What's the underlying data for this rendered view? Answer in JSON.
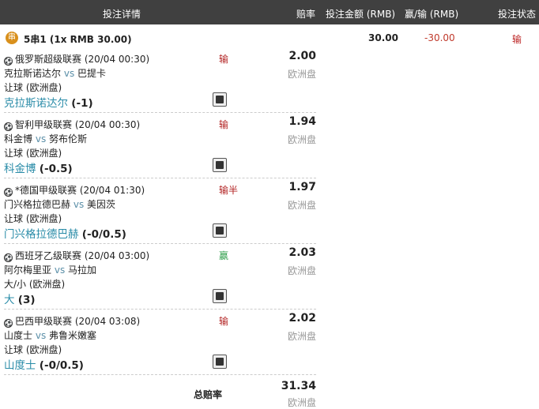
{
  "header": {
    "details": "投注详情",
    "odds": "赔率",
    "stake": "投注金额 (RMB)",
    "win_loss": "赢/输 (RMB)",
    "status": "投注状态"
  },
  "summary": {
    "badge": "串",
    "title": "5串1 (1x RMB 30.00)",
    "stake": "30.00",
    "win_loss": "-30.00",
    "status": "输"
  },
  "legs": [
    {
      "league": "俄罗斯超级联赛 (20/04 00:30)",
      "home": "克拉斯诺达尔",
      "vs": "vs",
      "away": "巴提卡",
      "market": "让球 (欧洲盘)",
      "pick": "克拉斯诺达尔",
      "line": "(-1)",
      "result": "输",
      "odds": "2.00",
      "odds_type": "欧洲盘"
    },
    {
      "league": "智利甲级联赛 (20/04 00:30)",
      "home": "科金博",
      "vs": "vs",
      "away": "努布伦斯",
      "market": "让球 (欧洲盘)",
      "pick": "科金博",
      "line": "(-0.5)",
      "result": "输",
      "odds": "1.94",
      "odds_type": "欧洲盘"
    },
    {
      "league": "*德国甲级联赛 (20/04 01:30)",
      "home": "门兴格拉德巴赫",
      "vs": "vs",
      "away": "美因茨",
      "market": "让球 (欧洲盘)",
      "pick": "门兴格拉德巴赫",
      "line": "(-0/0.5)",
      "result": "输半",
      "odds": "1.97",
      "odds_type": "欧洲盘"
    },
    {
      "league": "西班牙乙级联赛 (20/04 03:00)",
      "home": "阿尔梅里亚",
      "vs": "vs",
      "away": "马拉加",
      "market": "大/小 (欧洲盘)",
      "pick": "大",
      "line": "(3)",
      "result": "赢",
      "odds": "2.03",
      "odds_type": "欧洲盘"
    },
    {
      "league": "巴西甲级联赛 (20/04 03:08)",
      "home": "山度士",
      "vs": "vs",
      "away": "弗鲁米嫩塞",
      "market": "让球 (欧洲盘)",
      "pick": "山度士",
      "line": "(-0/0.5)",
      "result": "输",
      "odds": "2.02",
      "odds_type": "欧洲盘"
    }
  ],
  "total": {
    "label": "总赔率",
    "odds": "31.34",
    "odds_type": "欧洲盘"
  },
  "colors": {
    "header_bg": "#404040",
    "loss": "#b22222",
    "win": "#2e9e4a",
    "pick": "#2a8ca8",
    "badge": "#d9901c"
  }
}
